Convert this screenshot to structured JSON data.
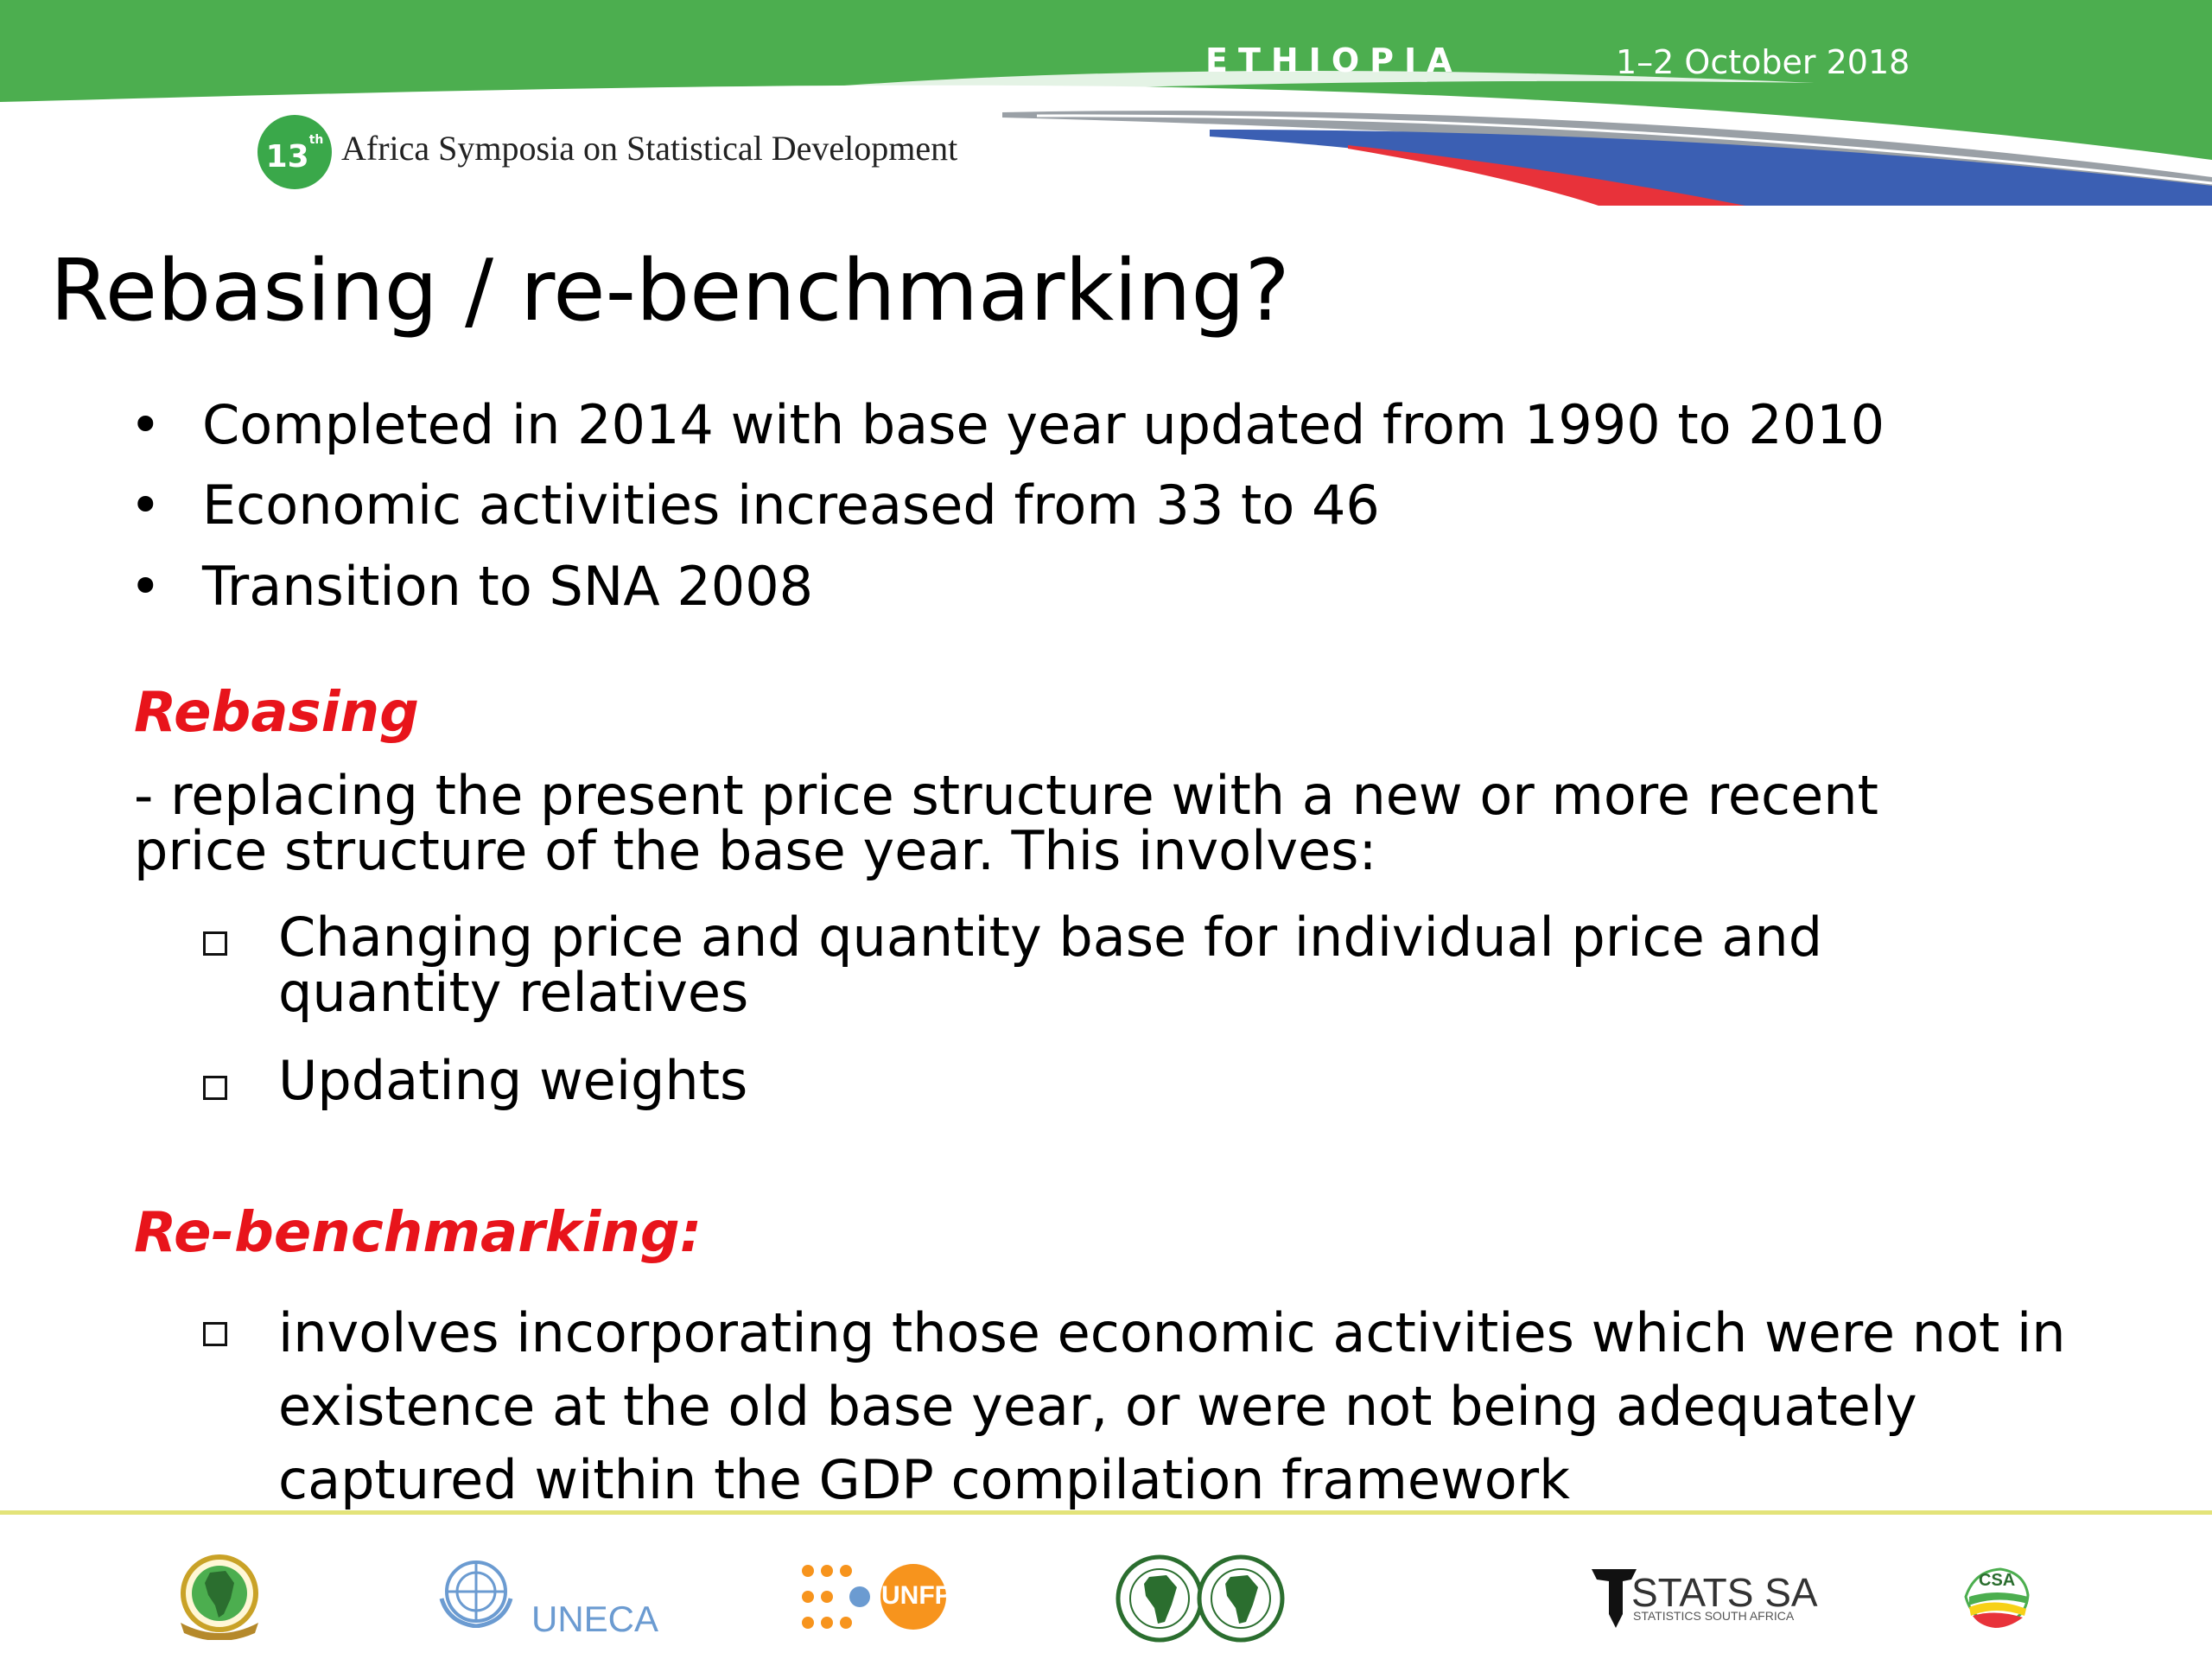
{
  "header": {
    "country": "ETHIOPIA",
    "date": "1–2 October 2018",
    "badge_number": "13",
    "badge_suffix": "th",
    "symposium": "Africa Symposia on Statistical Development",
    "colors": {
      "green": "#4cae4f",
      "blue": "#3b5fb3",
      "red": "#e8323a",
      "grey": "#9aa0a6"
    }
  },
  "slide": {
    "title": "Rebasing / re-benchmarking?",
    "bullets": [
      "Completed in 2014 with base year updated from 1990 to 2010",
      "Economic activities increased from 33 to 46",
      "Transition to SNA 2008"
    ],
    "bullet_char": "•",
    "rebasing": {
      "heading": "Rebasing",
      "line1": "- replacing the present price structure with a new or more recent",
      "line2": "price structure of the base year. This involves:",
      "items": [
        {
          "line1": "Changing price and quantity base for individual price and",
          "line2": "quantity relatives"
        },
        {
          "line1": "Updating weights"
        }
      ]
    },
    "rebenchmarking": {
      "heading": "Re-benchmarking:",
      "item_lines": [
        "involves incorporating those economic activities which were not in",
        "existence at the old base year, or were not being adequately",
        "captured within the GDP compilation framework"
      ]
    },
    "accent_color": "#e8141b"
  },
  "footer": {
    "line_color": "#e3e37a",
    "logos": [
      {
        "name": "african-union-logo"
      },
      {
        "name": "uneca-logo",
        "text": "UNECA"
      },
      {
        "name": "unfpa-logo",
        "text": "UNFPA"
      },
      {
        "name": "afdb-logo"
      },
      {
        "name": "stats-sa-logo",
        "text": "STATS SA",
        "subtext": "STATISTICS SOUTH AFRICA"
      },
      {
        "name": "csa-logo",
        "text": "CSA"
      }
    ]
  }
}
